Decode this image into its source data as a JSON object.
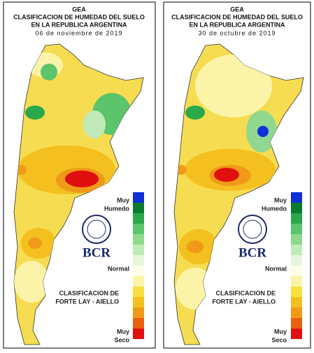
{
  "panels": [
    {
      "header": [
        "GEA",
        "CLASIFICACION DE HUMEDAD DEL SUELO",
        "EN LA REPUBLICA ARGENTINA"
      ],
      "date": "06 de noviembre de 2019",
      "logo": "BCR",
      "legend": {
        "top": [
          "Muy",
          "Humedo"
        ],
        "middle": "Normal",
        "bottom": [
          "Muy",
          "Seco"
        ]
      },
      "classification": [
        "CLASIFICACION DE",
        "FORTE LAY - AIELLO"
      ]
    },
    {
      "header": [
        "GEA",
        "CLASIFICACION DE HUMEDAD DEL SUELO",
        "EN LA REPUBLICA ARGENTINA"
      ],
      "date": "30 de octubre de 2019",
      "logo": "BCR",
      "legend": {
        "top": [
          "Muy",
          "Humedo"
        ],
        "middle": "Normal",
        "bottom": [
          "Muy",
          "Seco"
        ]
      },
      "classification": [
        "CLASIFICACION DE",
        "FORTE LAY - AIELLO"
      ]
    }
  ]
}
